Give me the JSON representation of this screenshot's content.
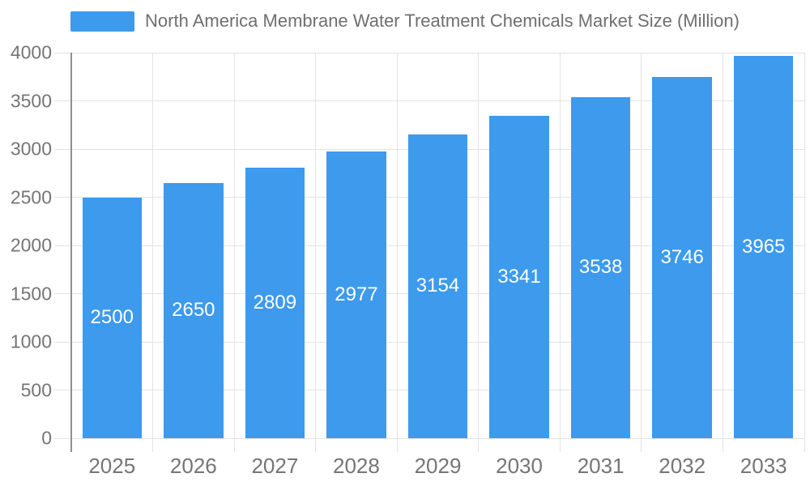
{
  "chart_data": {
    "type": "bar",
    "title": "North America Membrane Water Treatment Chemicals Market Size (Million)",
    "categories": [
      "2025",
      "2026",
      "2027",
      "2028",
      "2029",
      "2030",
      "2031",
      "2032",
      "2033"
    ],
    "values": [
      2500,
      2650,
      2809,
      2977,
      3154,
      3341,
      3538,
      3746,
      3965
    ],
    "xlabel": "",
    "ylabel": "",
    "ylim": [
      0,
      4000
    ],
    "yticks": [
      0,
      500,
      1000,
      1500,
      2000,
      2500,
      3000,
      3500,
      4000
    ],
    "grid": true,
    "legend_position": "top-center",
    "bar_color": "#3d9aed",
    "bar_label_color": "#ffffff",
    "axis_text_color": "#757575",
    "title_color": "#6f6f6f",
    "grid_color": "#e3e3e3",
    "axis_line_color": "#8f8f8f"
  }
}
